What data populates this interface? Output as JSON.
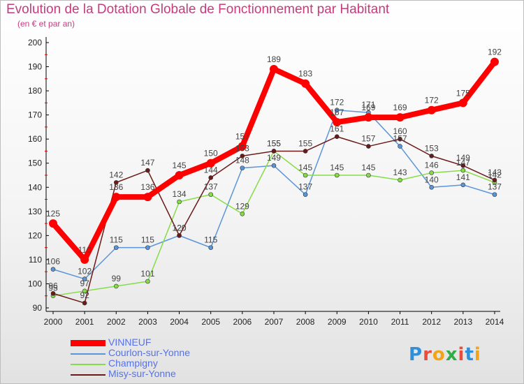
{
  "title": "Evolution de la Dotation Globale de Fonctionnement par Habitant",
  "subtitle": "(en € et par an)",
  "logo": "Proxiti",
  "colors": {
    "title": "#c53b7e",
    "legend_text": "#5572e8"
  },
  "chart_data": {
    "type": "line",
    "x": [
      "2000",
      "2001",
      "2002",
      "2003",
      "2004",
      "2005",
      "2006",
      "2007",
      "2008",
      "2009",
      "2010",
      "2011",
      "2012",
      "2013",
      "2014"
    ],
    "ylim": [
      90,
      200
    ],
    "yticks": [
      90,
      100,
      110,
      120,
      130,
      140,
      150,
      160,
      170,
      180,
      190,
      200
    ],
    "grid": false,
    "legend_position": "bottom-left",
    "series": [
      {
        "name": "Courlon-sur-Yonne",
        "color": "#5b95d8",
        "values": [
          106,
          102,
          115,
          115,
          120,
          115,
          148,
          149,
          137,
          172,
          171,
          157,
          140,
          141,
          137
        ]
      },
      {
        "name": "Champigny",
        "color": "#86dc48",
        "values": [
          95,
          97,
          99,
          101,
          134,
          137,
          129,
          155,
          145,
          145,
          145,
          143,
          146,
          147,
          142
        ]
      },
      {
        "name": "Misy-sur-Yonne",
        "color": "#6b1a1a",
        "values": [
          96,
          92,
          142,
          147,
          120,
          144,
          153,
          155,
          155,
          161,
          157,
          160,
          153,
          149,
          143
        ]
      },
      {
        "name": "VINNEUF",
        "color": "#ff0000",
        "values": [
          125,
          110,
          136,
          136,
          145,
          150,
          157,
          189,
          183,
          167,
          169,
          169,
          172,
          175,
          192
        ]
      }
    ]
  }
}
